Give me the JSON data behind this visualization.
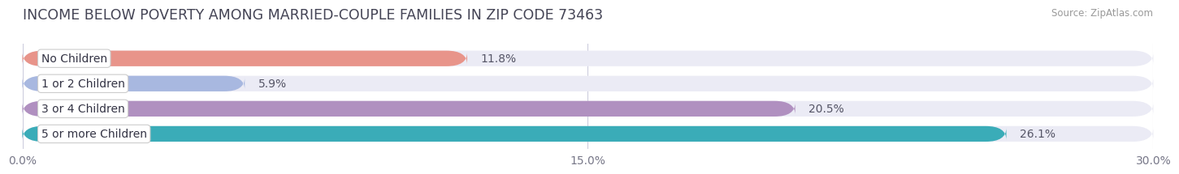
{
  "title": "INCOME BELOW POVERTY AMONG MARRIED-COUPLE FAMILIES IN ZIP CODE 73463",
  "source": "Source: ZipAtlas.com",
  "categories": [
    "No Children",
    "1 or 2 Children",
    "3 or 4 Children",
    "5 or more Children"
  ],
  "values": [
    11.8,
    5.9,
    20.5,
    26.1
  ],
  "bar_colors": [
    "#e8948a",
    "#a8b8e0",
    "#b090c0",
    "#3aacb8"
  ],
  "bar_bg_color": "#ebebf5",
  "background_color": "#ffffff",
  "xlim": [
    0,
    30.0
  ],
  "xticks": [
    0.0,
    15.0,
    30.0
  ],
  "xtick_labels": [
    "0.0%",
    "15.0%",
    "30.0%"
  ],
  "title_fontsize": 12.5,
  "bar_label_fontsize": 10,
  "tick_fontsize": 10,
  "category_fontsize": 10,
  "bar_height": 0.62,
  "value_label_format": "{}%",
  "grid_color": "#ccccdd",
  "text_color": "#555566",
  "title_color": "#444455",
  "label_box_color": "#ffffff",
  "label_edge_color": "#cccccc"
}
